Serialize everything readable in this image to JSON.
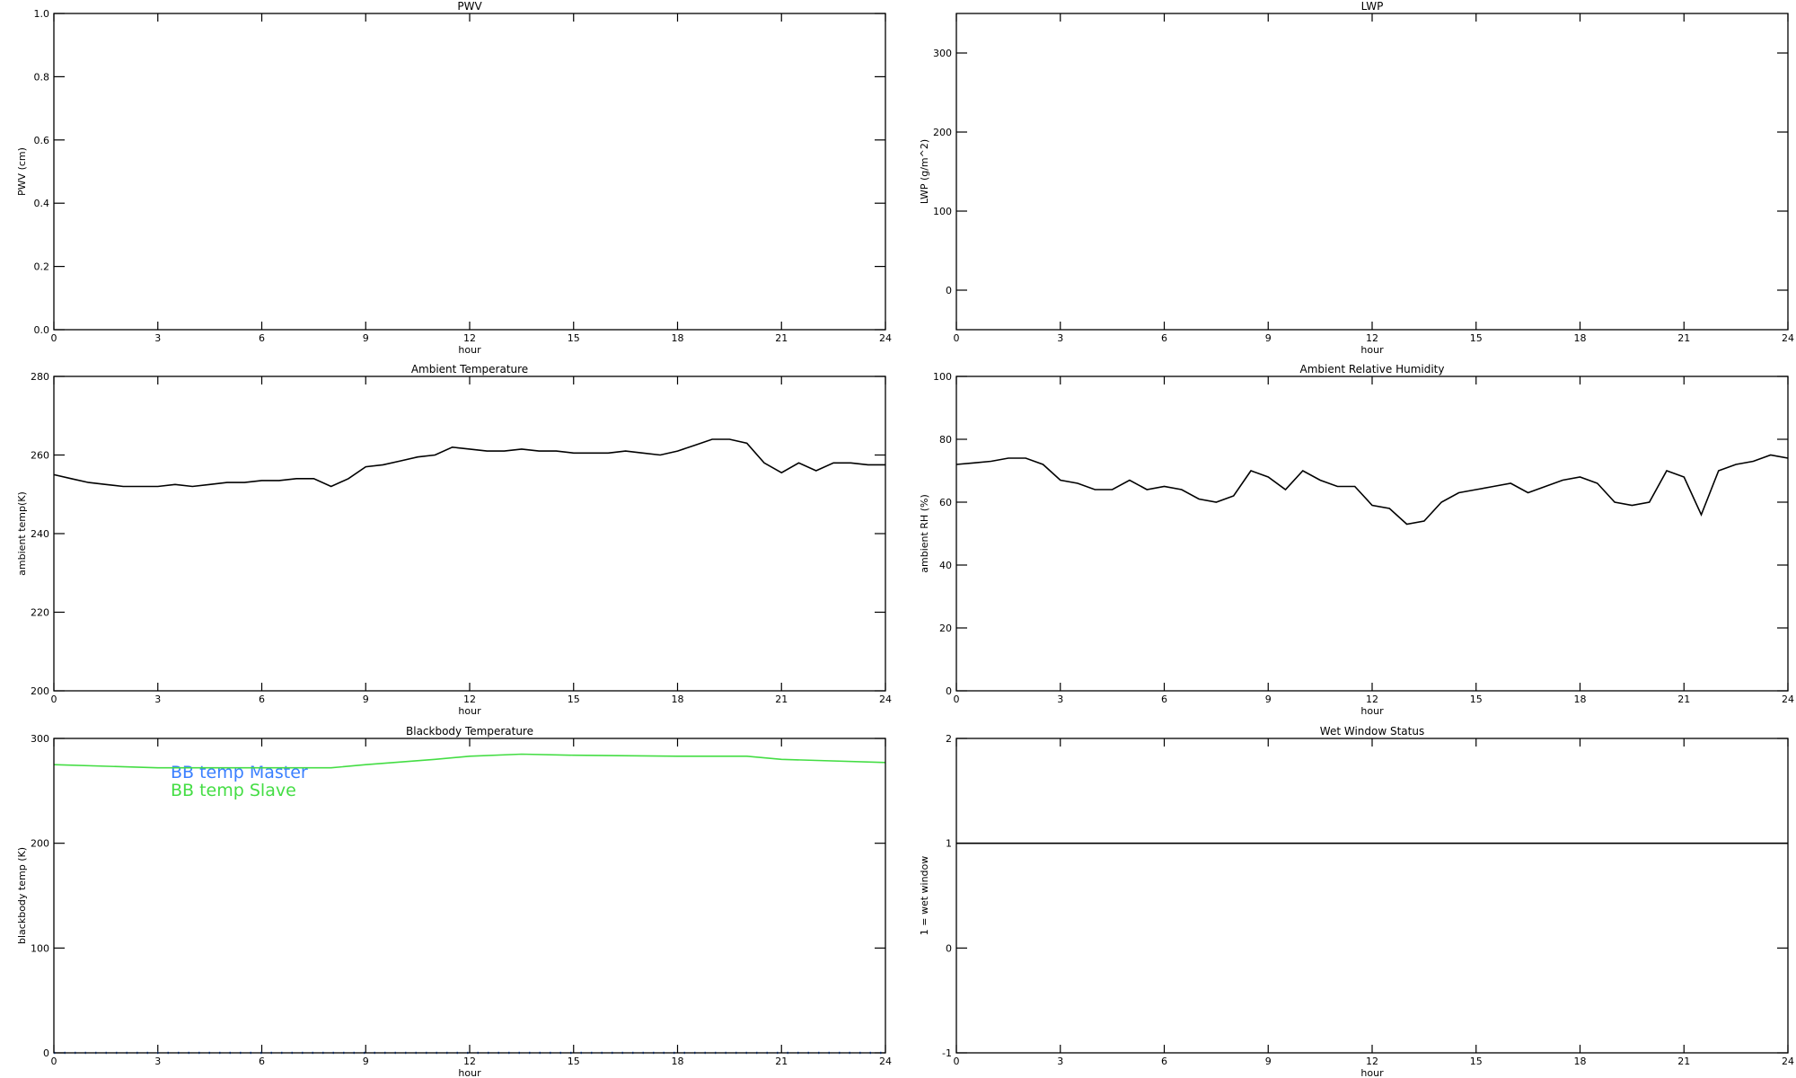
{
  "chart_data": [
    {
      "type": "line",
      "title": "PWV",
      "xlabel": "hour",
      "ylabel": "PWV (cm)",
      "xlim": [
        0,
        24
      ],
      "xticks": [
        0,
        3,
        6,
        9,
        12,
        15,
        18,
        21,
        24
      ],
      "ylim": [
        0,
        1
      ],
      "yticks": [
        {
          "value": 0,
          "label": "0.0"
        },
        0.2,
        0.4,
        0.6,
        0.8,
        {
          "value": 1,
          "label": "1.0"
        }
      ],
      "x": [],
      "series": []
    },
    {
      "type": "line",
      "title": "LWP",
      "xlabel": "hour",
      "ylabel": "LWP (g/m^2)",
      "xlim": [
        0,
        24
      ],
      "xticks": [
        0,
        3,
        6,
        9,
        12,
        15,
        18,
        21,
        24
      ],
      "ylim": [
        -50,
        350
      ],
      "yticks": [
        0,
        100,
        200,
        300
      ],
      "x": [],
      "series": []
    },
    {
      "type": "line",
      "title": "Ambient Temperature",
      "xlabel": "hour",
      "ylabel": "ambient temp(K)",
      "xlim": [
        0,
        24
      ],
      "xticks": [
        0,
        3,
        6,
        9,
        12,
        15,
        18,
        21,
        24
      ],
      "ylim": [
        200,
        280
      ],
      "yticks": [
        200,
        220,
        240,
        260,
        280
      ],
      "x": [
        0,
        0.5,
        1,
        1.5,
        2,
        2.5,
        3,
        3.5,
        4,
        4.5,
        5,
        5.5,
        6,
        6.5,
        7,
        7.5,
        8,
        8.5,
        9,
        9.5,
        10,
        10.5,
        11,
        11.5,
        12,
        12.5,
        13,
        13.5,
        14,
        14.5,
        15,
        15.5,
        16,
        16.5,
        17,
        17.5,
        18,
        18.5,
        19,
        19.5,
        20,
        20.5,
        21,
        21.5,
        22,
        22.5,
        23,
        23.5,
        24
      ],
      "series": [
        {
          "color": "#000000",
          "values": [
            255,
            254,
            253,
            252.5,
            252,
            252,
            252,
            252.5,
            252,
            252.5,
            253,
            253,
            253.5,
            253.5,
            254,
            254,
            252,
            254,
            257,
            257.5,
            258.5,
            259.5,
            260,
            262,
            261.5,
            261,
            261,
            261.5,
            261,
            261,
            260.5,
            260.5,
            260.5,
            261,
            260.5,
            260,
            261,
            262.5,
            264,
            264,
            263,
            258,
            255.5,
            258,
            256,
            258,
            258,
            257.5,
            257.5
          ]
        }
      ]
    },
    {
      "type": "line",
      "title": "Ambient Relative Humidity",
      "xlabel": "hour",
      "ylabel": "ambient RH (%)",
      "xlim": [
        0,
        24
      ],
      "xticks": [
        0,
        3,
        6,
        9,
        12,
        15,
        18,
        21,
        24
      ],
      "ylim": [
        0,
        100
      ],
      "yticks": [
        0,
        20,
        40,
        60,
        80,
        100
      ],
      "x": [
        0,
        0.5,
        1,
        1.5,
        2,
        2.5,
        3,
        3.5,
        4,
        4.5,
        5,
        5.5,
        6,
        6.5,
        7,
        7.5,
        8,
        8.5,
        9,
        9.5,
        10,
        10.5,
        11,
        11.5,
        12,
        12.5,
        13,
        13.5,
        14,
        14.5,
        15,
        15.5,
        16,
        16.5,
        17,
        17.5,
        18,
        18.5,
        19,
        19.5,
        20,
        20.5,
        21,
        21.5,
        22,
        22.5,
        23,
        23.5,
        24
      ],
      "series": [
        {
          "color": "#000000",
          "values": [
            72,
            72.5,
            73,
            74,
            74,
            72,
            67,
            66,
            64,
            64,
            67,
            64,
            65,
            64,
            61,
            60,
            62,
            70,
            68,
            64,
            70,
            67,
            65,
            65,
            59,
            58,
            53,
            54,
            60,
            63,
            64,
            65,
            66,
            63,
            65,
            67,
            68,
            66,
            60,
            59,
            60,
            70,
            68,
            56,
            70,
            72,
            73,
            75,
            74
          ]
        }
      ]
    },
    {
      "type": "line",
      "title": "Blackbody Temperature",
      "xlabel": "hour",
      "ylabel": "blackbody temp (K)",
      "xlim": [
        0,
        24
      ],
      "xticks": [
        0,
        3,
        6,
        9,
        12,
        15,
        18,
        21,
        24
      ],
      "ylim": [
        0,
        300
      ],
      "yticks": [
        0,
        100,
        200,
        300
      ],
      "legend": "upper left",
      "x": [
        0,
        3,
        6,
        8,
        9,
        11,
        12,
        13.5,
        15,
        18,
        20,
        21,
        24
      ],
      "series": [
        {
          "name": "BB temp Master",
          "color": "#3a7fff",
          "dotted": true,
          "values": [
            0,
            0,
            0,
            0,
            0,
            0,
            0,
            0,
            0,
            0,
            0,
            0,
            0
          ]
        },
        {
          "name": "BB temp Slave",
          "color": "#44dd44",
          "values": [
            275,
            272,
            272,
            272,
            275,
            280,
            283,
            285,
            284,
            283,
            283,
            280,
            277
          ]
        }
      ]
    },
    {
      "type": "line",
      "title": "Wet Window Status",
      "xlabel": "hour",
      "ylabel": "1 = wet window",
      "xlim": [
        0,
        24
      ],
      "xticks": [
        0,
        3,
        6,
        9,
        12,
        15,
        18,
        21,
        24
      ],
      "ylim": [
        -1,
        2
      ],
      "yticks": [
        -1,
        0,
        1,
        2
      ],
      "x": [
        0,
        24
      ],
      "series": [
        {
          "color": "#000000",
          "values": [
            1,
            1
          ]
        }
      ]
    }
  ]
}
